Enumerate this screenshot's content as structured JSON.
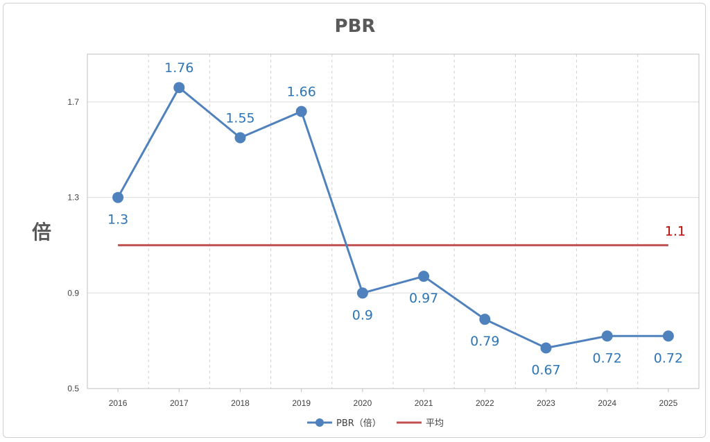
{
  "chart_data": {
    "type": "line",
    "title": "PBR",
    "ylabel": "倍",
    "xlabel": "",
    "categories": [
      "2016",
      "2017",
      "2018",
      "2019",
      "2020",
      "2021",
      "2022",
      "2023",
      "2024",
      "2025"
    ],
    "ylim": [
      0.5,
      1.9
    ],
    "yticks": [
      "0.5",
      "0.9",
      "1.3",
      "1.7"
    ],
    "grid": true,
    "legend_position": "bottom",
    "series": [
      {
        "name": "PBR（倍）",
        "values": [
          1.3,
          1.76,
          1.55,
          1.66,
          0.9,
          0.97,
          0.79,
          0.67,
          0.72,
          0.72
        ],
        "labels": [
          "1.3",
          "1.76",
          "1.55",
          "1.66",
          "0.9",
          "0.97",
          "0.79",
          "0.67",
          "0.72",
          "0.72"
        ],
        "color": "#4f81bd",
        "label_color": "#2e75b6"
      },
      {
        "name": "平均",
        "values": [
          1.1,
          1.1,
          1.1,
          1.1,
          1.1,
          1.1,
          1.1,
          1.1,
          1.1,
          1.1
        ],
        "labels": [
          "1.1"
        ],
        "color": "#c0504d",
        "label_color": "#c00000"
      }
    ]
  }
}
